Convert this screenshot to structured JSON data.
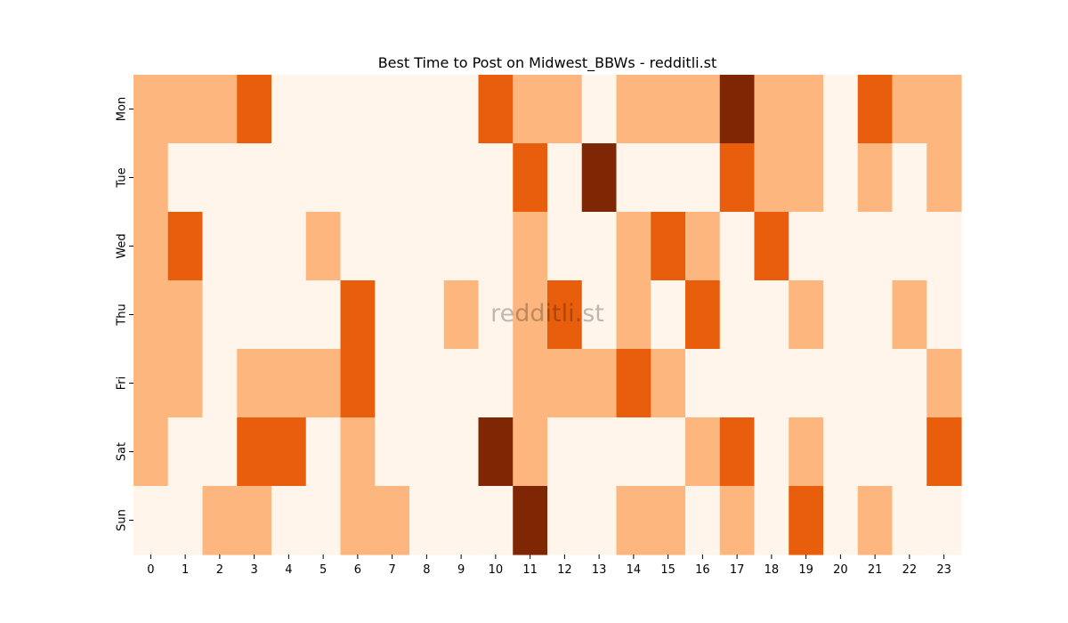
{
  "chart_data": {
    "type": "heatmap",
    "title": "Best Time to Post on Midwest_BBWs - redditli.st",
    "watermark": "redditli.st",
    "xlabel": "",
    "ylabel": "",
    "x_categories": [
      "0",
      "1",
      "2",
      "3",
      "4",
      "5",
      "6",
      "7",
      "8",
      "9",
      "10",
      "11",
      "12",
      "13",
      "14",
      "15",
      "16",
      "17",
      "18",
      "19",
      "20",
      "21",
      "22",
      "23"
    ],
    "y_categories": [
      "Mon",
      "Tue",
      "Wed",
      "Thu",
      "Fri",
      "Sat",
      "Sun"
    ],
    "levels": 4,
    "colors": [
      "#fff5eb",
      "#fdb77e",
      "#e95e0d",
      "#7f2704"
    ],
    "values": [
      [
        1,
        1,
        1,
        2,
        0,
        0,
        0,
        0,
        0,
        0,
        2,
        1,
        1,
        0,
        1,
        1,
        1,
        3,
        1,
        1,
        0,
        2,
        1,
        1
      ],
      [
        1,
        0,
        0,
        0,
        0,
        0,
        0,
        0,
        0,
        0,
        0,
        2,
        0,
        3,
        0,
        0,
        0,
        2,
        1,
        1,
        0,
        1,
        0,
        1
      ],
      [
        1,
        2,
        0,
        0,
        0,
        1,
        0,
        0,
        0,
        0,
        0,
        1,
        0,
        0,
        1,
        2,
        1,
        0,
        2,
        0,
        0,
        0,
        0,
        0
      ],
      [
        1,
        1,
        0,
        0,
        0,
        0,
        2,
        0,
        0,
        1,
        0,
        1,
        2,
        0,
        1,
        0,
        2,
        0,
        0,
        1,
        0,
        0,
        1,
        0
      ],
      [
        1,
        1,
        0,
        1,
        1,
        1,
        2,
        0,
        0,
        0,
        0,
        1,
        1,
        1,
        2,
        1,
        0,
        0,
        0,
        0,
        0,
        0,
        0,
        1
      ],
      [
        1,
        0,
        0,
        2,
        2,
        0,
        1,
        0,
        0,
        0,
        3,
        1,
        0,
        0,
        0,
        0,
        1,
        2,
        0,
        1,
        0,
        0,
        0,
        2
      ],
      [
        0,
        0,
        1,
        1,
        0,
        0,
        1,
        1,
        0,
        0,
        0,
        3,
        0,
        0,
        1,
        1,
        0,
        1,
        0,
        2,
        0,
        1,
        0,
        0
      ]
    ],
    "grid": false,
    "colorbar": false
  }
}
